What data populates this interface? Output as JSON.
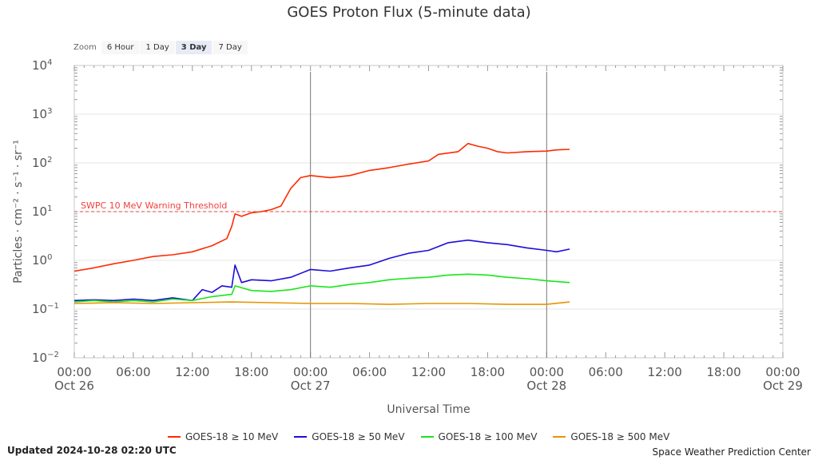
{
  "header": {
    "title": "GOES Proton Flux (5-minute data)"
  },
  "zoom": {
    "label": "Zoom",
    "buttons": [
      "6 Hour",
      "1 Day",
      "3 Day",
      "7 Day"
    ],
    "active": "3 Day"
  },
  "footer": {
    "updated": "Updated 2024-10-28 02:20 UTC",
    "credit": "Space Weather Prediction Center"
  },
  "chart_data": {
    "type": "line",
    "title": "GOES Proton Flux (5-minute data)",
    "xlabel": "Universal Time",
    "ylabel": "Particles · cm⁻² · s⁻¹ · sr⁻¹",
    "y_scale": "log",
    "ylim": [
      0.01,
      10000
    ],
    "y_ticks": [
      {
        "value": 0.01,
        "base": "10",
        "exp": "−2"
      },
      {
        "value": 0.1,
        "base": "10",
        "exp": "−1"
      },
      {
        "value": 1,
        "base": "10",
        "exp": "0"
      },
      {
        "value": 10,
        "base": "10",
        "exp": "1"
      },
      {
        "value": 100,
        "base": "10",
        "exp": "2"
      },
      {
        "value": 1000,
        "base": "10",
        "exp": "3"
      },
      {
        "value": 10000,
        "base": "10",
        "exp": "4"
      }
    ],
    "xlim": [
      "2024-10-26 00:00",
      "2024-10-29 00:00"
    ],
    "x_ticks": [
      {
        "x": "2024-10-26 00:00",
        "time": "00:00",
        "date": "Oct 26"
      },
      {
        "x": "2024-10-26 06:00",
        "time": "06:00",
        "date": ""
      },
      {
        "x": "2024-10-26 12:00",
        "time": "12:00",
        "date": ""
      },
      {
        "x": "2024-10-26 18:00",
        "time": "18:00",
        "date": ""
      },
      {
        "x": "2024-10-27 00:00",
        "time": "00:00",
        "date": "Oct 27"
      },
      {
        "x": "2024-10-27 06:00",
        "time": "06:00",
        "date": ""
      },
      {
        "x": "2024-10-27 12:00",
        "time": "12:00",
        "date": ""
      },
      {
        "x": "2024-10-27 18:00",
        "time": "18:00",
        "date": ""
      },
      {
        "x": "2024-10-28 00:00",
        "time": "00:00",
        "date": "Oct 28"
      },
      {
        "x": "2024-10-28 06:00",
        "time": "06:00",
        "date": ""
      },
      {
        "x": "2024-10-28 12:00",
        "time": "12:00",
        "date": ""
      },
      {
        "x": "2024-10-28 18:00",
        "time": "18:00",
        "date": ""
      },
      {
        "x": "2024-10-29 00:00",
        "time": "00:00",
        "date": "Oct 29"
      }
    ],
    "day_markers": [
      "2024-10-27 00:00",
      "2024-10-28 00:00"
    ],
    "threshold": {
      "value": 10,
      "label": "SWPC 10 MeV Warning Threshold",
      "color": "#f04040"
    },
    "grid": true,
    "legend_position": "bottom",
    "series": [
      {
        "name": "GOES-18 ≥ 10 MeV",
        "color": "#ff2a00",
        "points": [
          [
            "2024-10-26 00:00",
            0.6
          ],
          [
            "2024-10-26 02:00",
            0.7
          ],
          [
            "2024-10-26 04:00",
            0.85
          ],
          [
            "2024-10-26 06:00",
            1.0
          ],
          [
            "2024-10-26 08:00",
            1.2
          ],
          [
            "2024-10-26 10:00",
            1.3
          ],
          [
            "2024-10-26 12:00",
            1.5
          ],
          [
            "2024-10-26 14:00",
            2.0
          ],
          [
            "2024-10-26 15:30",
            2.8
          ],
          [
            "2024-10-26 16:00",
            5.0
          ],
          [
            "2024-10-26 16:20",
            9.0
          ],
          [
            "2024-10-26 17:00",
            8.0
          ],
          [
            "2024-10-26 18:00",
            9.5
          ],
          [
            "2024-10-26 19:00",
            10.0
          ],
          [
            "2024-10-26 20:00",
            11.0
          ],
          [
            "2024-10-26 21:00",
            13.0
          ],
          [
            "2024-10-26 22:00",
            30.0
          ],
          [
            "2024-10-26 23:00",
            50.0
          ],
          [
            "2024-10-27 00:00",
            55.0
          ],
          [
            "2024-10-27 02:00",
            50.0
          ],
          [
            "2024-10-27 04:00",
            55.0
          ],
          [
            "2024-10-27 06:00",
            70.0
          ],
          [
            "2024-10-27 08:00",
            80.0
          ],
          [
            "2024-10-27 10:00",
            95.0
          ],
          [
            "2024-10-27 12:00",
            110.0
          ],
          [
            "2024-10-27 13:00",
            150.0
          ],
          [
            "2024-10-27 15:00",
            170.0
          ],
          [
            "2024-10-27 16:00",
            250.0
          ],
          [
            "2024-10-27 17:00",
            220.0
          ],
          [
            "2024-10-27 18:00",
            200.0
          ],
          [
            "2024-10-27 19:00",
            170.0
          ],
          [
            "2024-10-27 20:00",
            160.0
          ],
          [
            "2024-10-27 22:00",
            170.0
          ],
          [
            "2024-10-28 00:00",
            175.0
          ],
          [
            "2024-10-28 01:00",
            185.0
          ],
          [
            "2024-10-28 02:20",
            190.0
          ]
        ]
      },
      {
        "name": "GOES-18 ≥ 50 MeV",
        "color": "#1e0cdc",
        "points": [
          [
            "2024-10-26 00:00",
            0.15
          ],
          [
            "2024-10-26 02:00",
            0.155
          ],
          [
            "2024-10-26 04:00",
            0.15
          ],
          [
            "2024-10-26 06:00",
            0.16
          ],
          [
            "2024-10-26 08:00",
            0.15
          ],
          [
            "2024-10-26 10:00",
            0.17
          ],
          [
            "2024-10-26 12:00",
            0.15
          ],
          [
            "2024-10-26 13:00",
            0.25
          ],
          [
            "2024-10-26 14:00",
            0.22
          ],
          [
            "2024-10-26 15:00",
            0.3
          ],
          [
            "2024-10-26 16:00",
            0.28
          ],
          [
            "2024-10-26 16:20",
            0.8
          ],
          [
            "2024-10-26 17:00",
            0.35
          ],
          [
            "2024-10-26 18:00",
            0.4
          ],
          [
            "2024-10-26 20:00",
            0.38
          ],
          [
            "2024-10-26 22:00",
            0.45
          ],
          [
            "2024-10-27 00:00",
            0.65
          ],
          [
            "2024-10-27 02:00",
            0.6
          ],
          [
            "2024-10-27 04:00",
            0.7
          ],
          [
            "2024-10-27 06:00",
            0.8
          ],
          [
            "2024-10-27 08:00",
            1.1
          ],
          [
            "2024-10-27 10:00",
            1.4
          ],
          [
            "2024-10-27 12:00",
            1.6
          ],
          [
            "2024-10-27 14:00",
            2.3
          ],
          [
            "2024-10-27 16:00",
            2.6
          ],
          [
            "2024-10-27 18:00",
            2.3
          ],
          [
            "2024-10-27 20:00",
            2.1
          ],
          [
            "2024-10-27 22:00",
            1.8
          ],
          [
            "2024-10-28 00:00",
            1.6
          ],
          [
            "2024-10-28 01:00",
            1.5
          ],
          [
            "2024-10-28 02:20",
            1.7
          ]
        ]
      },
      {
        "name": "GOES-18 ≥ 100 MeV",
        "color": "#19e619",
        "points": [
          [
            "2024-10-26 00:00",
            0.14
          ],
          [
            "2024-10-26 02:00",
            0.15
          ],
          [
            "2024-10-26 04:00",
            0.14
          ],
          [
            "2024-10-26 06:00",
            0.15
          ],
          [
            "2024-10-26 08:00",
            0.14
          ],
          [
            "2024-10-26 10:00",
            0.16
          ],
          [
            "2024-10-26 12:00",
            0.15
          ],
          [
            "2024-10-26 14:00",
            0.18
          ],
          [
            "2024-10-26 16:00",
            0.2
          ],
          [
            "2024-10-26 16:20",
            0.3
          ],
          [
            "2024-10-26 18:00",
            0.24
          ],
          [
            "2024-10-26 20:00",
            0.23
          ],
          [
            "2024-10-26 22:00",
            0.25
          ],
          [
            "2024-10-27 00:00",
            0.3
          ],
          [
            "2024-10-27 02:00",
            0.28
          ],
          [
            "2024-10-27 04:00",
            0.32
          ],
          [
            "2024-10-27 06:00",
            0.35
          ],
          [
            "2024-10-27 08:00",
            0.4
          ],
          [
            "2024-10-27 10:00",
            0.43
          ],
          [
            "2024-10-27 12:00",
            0.45
          ],
          [
            "2024-10-27 14:00",
            0.5
          ],
          [
            "2024-10-27 16:00",
            0.52
          ],
          [
            "2024-10-27 18:00",
            0.5
          ],
          [
            "2024-10-27 20:00",
            0.45
          ],
          [
            "2024-10-27 22:00",
            0.42
          ],
          [
            "2024-10-28 00:00",
            0.38
          ],
          [
            "2024-10-28 02:20",
            0.35
          ]
        ]
      },
      {
        "name": "GOES-18 ≥ 500 MeV",
        "color": "#e69500",
        "points": [
          [
            "2024-10-26 00:00",
            0.13
          ],
          [
            "2024-10-26 04:00",
            0.135
          ],
          [
            "2024-10-26 08:00",
            0.13
          ],
          [
            "2024-10-26 12:00",
            0.135
          ],
          [
            "2024-10-26 16:00",
            0.14
          ],
          [
            "2024-10-26 20:00",
            0.135
          ],
          [
            "2024-10-27 00:00",
            0.13
          ],
          [
            "2024-10-27 04:00",
            0.13
          ],
          [
            "2024-10-27 08:00",
            0.125
          ],
          [
            "2024-10-27 12:00",
            0.13
          ],
          [
            "2024-10-27 16:00",
            0.13
          ],
          [
            "2024-10-27 20:00",
            0.125
          ],
          [
            "2024-10-28 00:00",
            0.125
          ],
          [
            "2024-10-28 02:20",
            0.14
          ]
        ]
      }
    ]
  }
}
